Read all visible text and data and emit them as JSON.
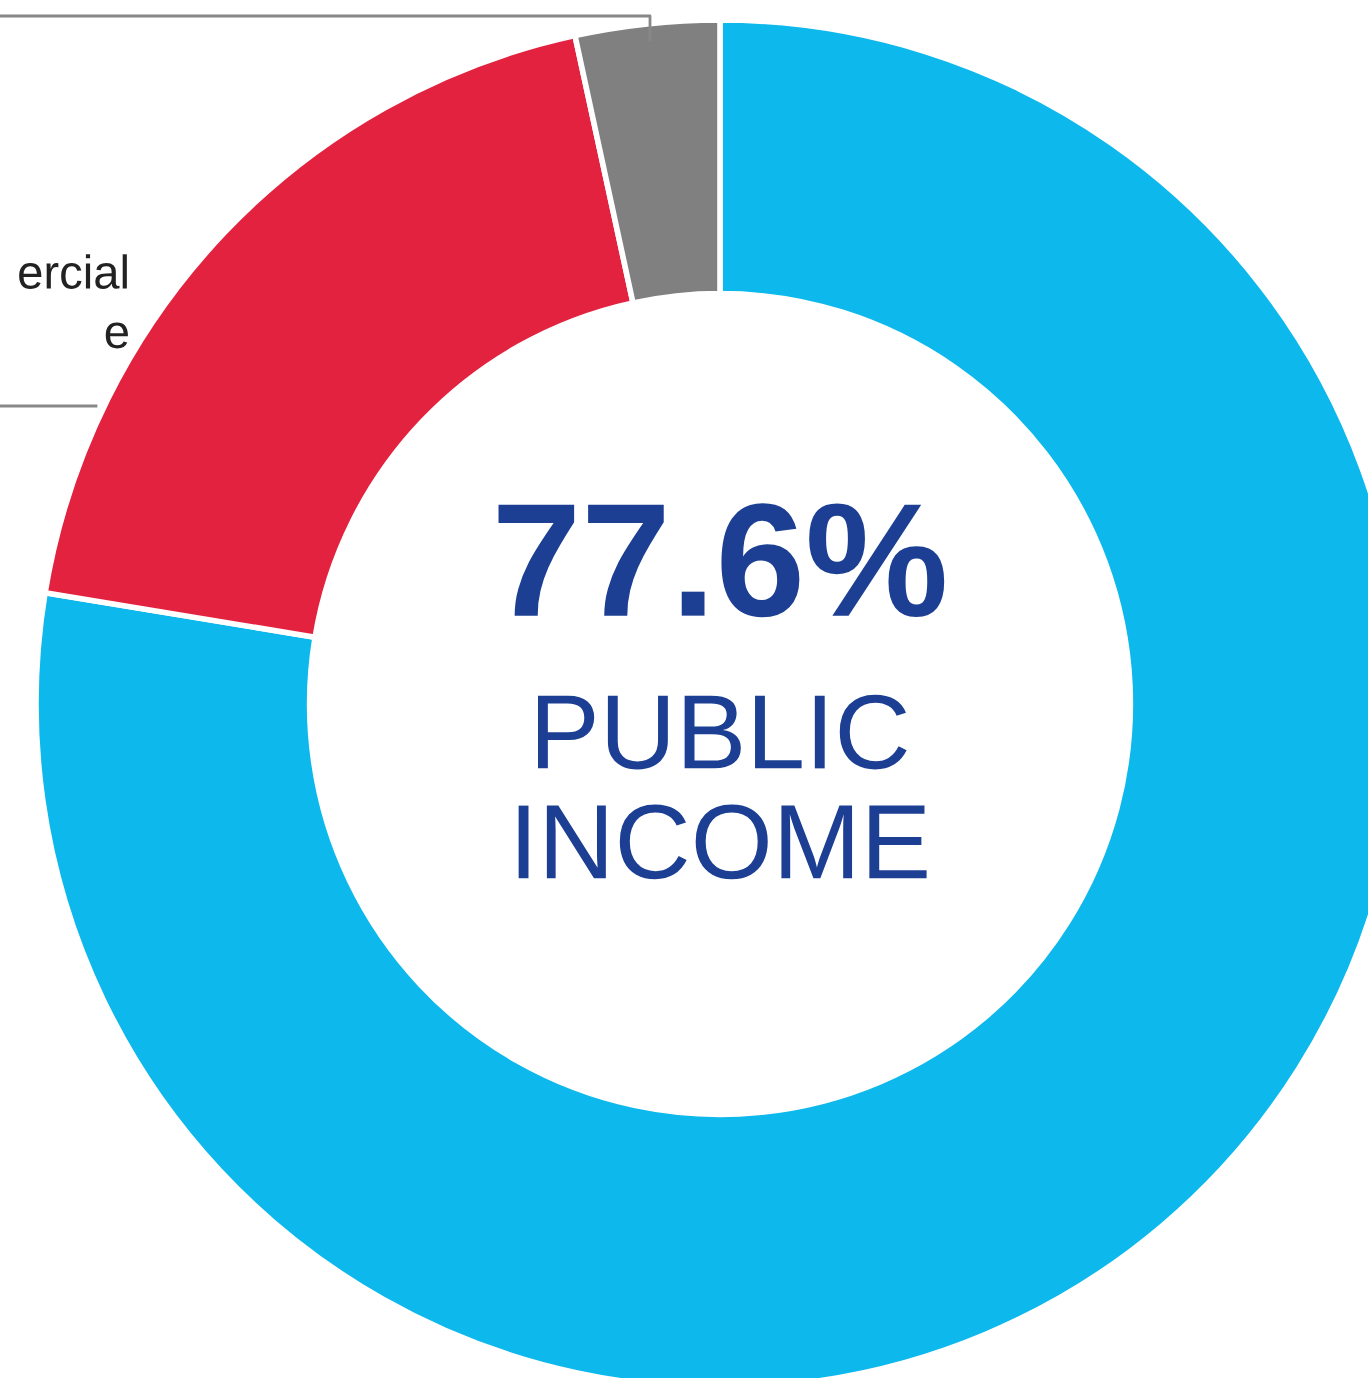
{
  "chart_data": {
    "type": "donut",
    "categories": [
      null,
      "ercial\ne",
      null
    ],
    "values": [
      77.6,
      19.0,
      3.4
    ],
    "colors": [
      "#0db8ec",
      "#e3223f",
      "#808080"
    ],
    "annotations": [
      "77.6%",
      "PUBLIC\nINCOME"
    ]
  }
}
